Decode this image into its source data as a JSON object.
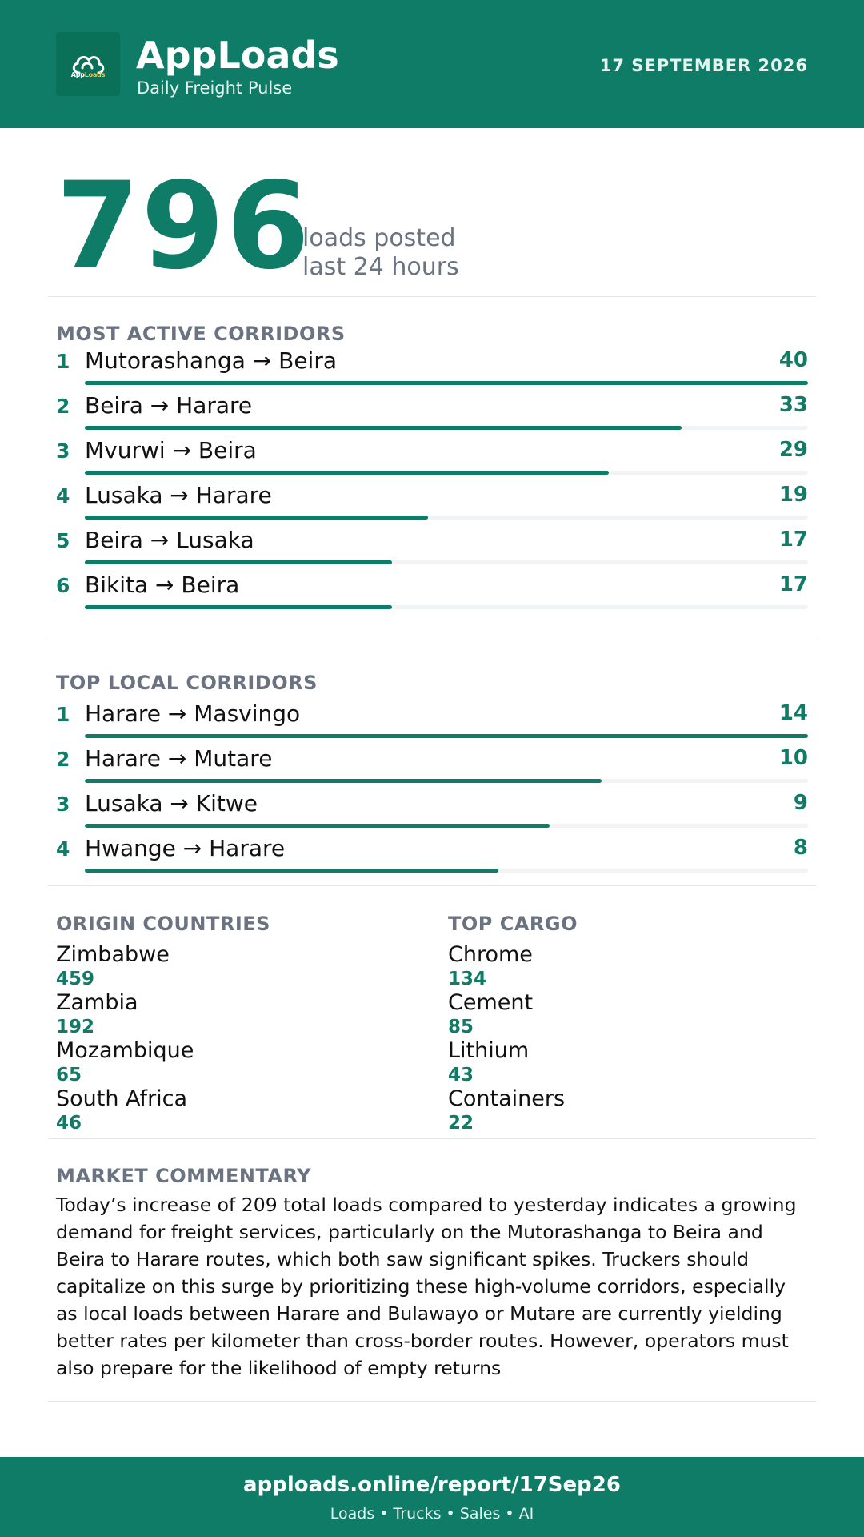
{
  "header": {
    "brand_name": "AppLoads",
    "brand_tagline": "Daily Freight Pulse",
    "logo_text_part1": "App",
    "logo_text_part2": "Loads",
    "date": "17 SEPTEMBER 2026",
    "background_color": "#0e7c66"
  },
  "hero": {
    "value": "796",
    "caption_line1": "loads posted",
    "caption_line2": "last 24 hours"
  },
  "most_active": {
    "title": "MOST ACTIVE CORRIDORS",
    "max": 40,
    "items": [
      {
        "rank": "1",
        "route": "Mutorashanga → Beira",
        "count": 40
      },
      {
        "rank": "2",
        "route": "Beira → Harare",
        "count": 33
      },
      {
        "rank": "3",
        "route": "Mvurwi → Beira",
        "count": 29
      },
      {
        "rank": "4",
        "route": "Lusaka → Harare",
        "count": 19
      },
      {
        "rank": "5",
        "route": "Beira → Lusaka",
        "count": 17
      },
      {
        "rank": "6",
        "route": "Bikita → Beira",
        "count": 17
      }
    ]
  },
  "top_local": {
    "title": "TOP LOCAL CORRIDORS",
    "max": 14,
    "items": [
      {
        "rank": "1",
        "route": "Harare → Masvingo",
        "count": 14
      },
      {
        "rank": "2",
        "route": "Harare → Mutare",
        "count": 10
      },
      {
        "rank": "3",
        "route": "Lusaka → Kitwe",
        "count": 9
      },
      {
        "rank": "4",
        "route": "Hwange → Harare",
        "count": 8
      }
    ]
  },
  "origin_countries": {
    "title": "ORIGIN COUNTRIES",
    "items": [
      {
        "name": "Zimbabwe",
        "value": "459"
      },
      {
        "name": "Zambia",
        "value": "192"
      },
      {
        "name": "Mozambique",
        "value": "65"
      },
      {
        "name": "South Africa",
        "value": "46"
      }
    ]
  },
  "top_cargo": {
    "title": "TOP CARGO",
    "items": [
      {
        "name": "Chrome",
        "value": "134"
      },
      {
        "name": "Cement",
        "value": "85"
      },
      {
        "name": "Lithium",
        "value": "43"
      },
      {
        "name": "Containers",
        "value": "22"
      }
    ]
  },
  "commentary": {
    "title": "MARKET COMMENTARY",
    "text": "Today’s increase of 209 total loads compared to yesterday indicates a growing demand for freight services, particularly on the Mutorashanga to Beira and Beira to Harare routes, which both saw significant spikes. Truckers should capitalize on this surge by prioritizing these high-volume corridors, especially as local loads between Harare and Bulawayo or Mutare are currently yielding better rates per kilometer than cross-border routes. However, operators must also prepare for the likelihood of empty returns"
  },
  "footer": {
    "url": "apploads.online/report/17Sep26",
    "tagline": "Loads • Trucks • Sales • AI"
  },
  "colors": {
    "accent": "#0e7c66",
    "muted": "#6b7280",
    "track": "#f1f3f4"
  }
}
